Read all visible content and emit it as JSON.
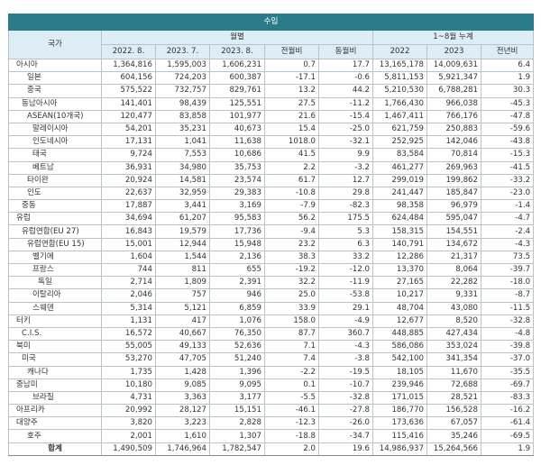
{
  "title": "수입",
  "headers": {
    "country": "국가",
    "monthly": "월별",
    "cumulative": "1~8월 누계",
    "cols": [
      "2022. 8.",
      "2023. 7.",
      "2023. 8.",
      "전월비",
      "동월비",
      "2022",
      "2023",
      "전년비"
    ]
  },
  "colors": {
    "title_bg": "#2b7c8b",
    "header_bg": "#dcedf5"
  },
  "rows": [
    {
      "name": "아시아",
      "level": 0,
      "values": [
        "1,364,816",
        "1,595,003",
        "1,606,231",
        "0.7",
        "17.7",
        "13,165,178",
        "14,009,631",
        "6.4"
      ]
    },
    {
      "name": "일본",
      "level": 2,
      "values": [
        "604,156",
        "724,203",
        "600,387",
        "-17.1",
        "-0.6",
        "5,811,153",
        "5,921,347",
        "1.9"
      ]
    },
    {
      "name": "중국",
      "level": 2,
      "values": [
        "575,522",
        "732,757",
        "829,761",
        "13.2",
        "44.2",
        "5,210,530",
        "6,788,281",
        "30.3"
      ]
    },
    {
      "name": "동남아시아",
      "level": 1,
      "values": [
        "141,401",
        "98,439",
        "125,551",
        "27.5",
        "-11.2",
        "1,766,430",
        "966,038",
        "-45.3"
      ]
    },
    {
      "name": "ASEAN(10개국)",
      "level": 2,
      "values": [
        "120,477",
        "83,858",
        "101,977",
        "21.6",
        "-15.4",
        "1,467,411",
        "766,176",
        "-47.8"
      ]
    },
    {
      "name": "말레이시아",
      "level": 3,
      "values": [
        "54,201",
        "35,231",
        "40,673",
        "15.4",
        "-25.0",
        "621,759",
        "250,883",
        "-59.6"
      ]
    },
    {
      "name": "인도네시아",
      "level": 3,
      "values": [
        "17,131",
        "1,041",
        "11,638",
        "1018.0",
        "-32.1",
        "252,925",
        "142,046",
        "-43.8"
      ]
    },
    {
      "name": "태국",
      "level": 3,
      "values": [
        "9,724",
        "7,553",
        "10,686",
        "41.5",
        "9.9",
        "83,584",
        "70,814",
        "-15.3"
      ]
    },
    {
      "name": "베트남",
      "level": 3,
      "values": [
        "36,931",
        "34,980",
        "35,753",
        "2.2",
        "-3.2",
        "461,277",
        "269,963",
        "-41.5"
      ]
    },
    {
      "name": "타이완",
      "level": 2,
      "values": [
        "20,924",
        "14,581",
        "23,574",
        "61.7",
        "12.7",
        "299,019",
        "199,862",
        "-33.2"
      ]
    },
    {
      "name": "인도",
      "level": 2,
      "values": [
        "22,637",
        "32,959",
        "29,383",
        "-10.8",
        "29.8",
        "241,447",
        "185,847",
        "-23.0"
      ]
    },
    {
      "name": "중동",
      "level": 1,
      "values": [
        "17,887",
        "3,441",
        "3,169",
        "-7.9",
        "-82.3",
        "98,358",
        "96,979",
        "-1.4"
      ]
    },
    {
      "name": "유럽",
      "level": 0,
      "values": [
        "34,694",
        "61,207",
        "95,583",
        "56.2",
        "175.5",
        "624,484",
        "595,047",
        "-4.7"
      ]
    },
    {
      "name": "유럽연합(EU 27)",
      "level": 1,
      "values": [
        "16,843",
        "19,579",
        "17,736",
        "-9.4",
        "5.3",
        "158,315",
        "154,551",
        "-2.4"
      ]
    },
    {
      "name": "유럽연합(EU 15)",
      "level": 2,
      "values": [
        "15,001",
        "12,944",
        "15,948",
        "23.2",
        "6.3",
        "140,791",
        "134,672",
        "-4.3"
      ]
    },
    {
      "name": "벨기에",
      "level": 3,
      "values": [
        "1,604",
        "1,544",
        "2,136",
        "38.3",
        "33.2",
        "12,286",
        "21,317",
        "73.5"
      ]
    },
    {
      "name": "프랑스",
      "level": 3,
      "values": [
        "744",
        "811",
        "655",
        "-19.2",
        "-12.0",
        "13,370",
        "8,064",
        "-39.7"
      ]
    },
    {
      "name": "독일",
      "level": 4,
      "values": [
        "2,714",
        "1,809",
        "2,391",
        "32.2",
        "-11.9",
        "27,165",
        "22,282",
        "-18.0"
      ]
    },
    {
      "name": "이탈리아",
      "level": 3,
      "values": [
        "2,046",
        "757",
        "946",
        "25.0",
        "-53.8",
        "10,217",
        "9,331",
        "-8.7"
      ]
    },
    {
      "name": "스웨덴",
      "level": 3,
      "values": [
        "5,314",
        "5,121",
        "6,859",
        "33.9",
        "29.1",
        "48,704",
        "43,080",
        "-11.5"
      ]
    },
    {
      "name": "터키",
      "level": 0,
      "values": [
        "1,131",
        "417",
        "1,076",
        "158.0",
        "-4.9",
        "12,677",
        "8,520",
        "-32.8"
      ]
    },
    {
      "name": "C.I.S.",
      "level": 1,
      "values": [
        "16,572",
        "40,667",
        "76,350",
        "87.7",
        "360.7",
        "448,885",
        "427,434",
        "-4.8"
      ]
    },
    {
      "name": "북미",
      "level": 0,
      "values": [
        "55,005",
        "49,133",
        "52,636",
        "7.1",
        "-4.3",
        "586,086",
        "353,024",
        "-39.8"
      ]
    },
    {
      "name": "미국",
      "level": 1,
      "values": [
        "53,270",
        "47,705",
        "51,240",
        "7.4",
        "-3.8",
        "542,100",
        "341,354",
        "-37.0"
      ]
    },
    {
      "name": "캐나다",
      "level": 2,
      "values": [
        "1,735",
        "1,428",
        "1,396",
        "-2.2",
        "-19.5",
        "18,105",
        "11,670",
        "-35.5"
      ]
    },
    {
      "name": "중남미",
      "level": 0,
      "values": [
        "10,180",
        "9,085",
        "9,095",
        "0.1",
        "-10.7",
        "239,946",
        "72,688",
        "-69.7"
      ]
    },
    {
      "name": "브라질",
      "level": 3,
      "values": [
        "4,731",
        "3,363",
        "3,177",
        "-5.5",
        "-32.8",
        "171,015",
        "28,521",
        "-83.3"
      ]
    },
    {
      "name": "아프리카",
      "level": 0,
      "values": [
        "20,992",
        "28,127",
        "15,151",
        "-46.1",
        "-27.8",
        "186,770",
        "156,528",
        "-16.2"
      ]
    },
    {
      "name": "대양주",
      "level": 0,
      "values": [
        "3,820",
        "3,223",
        "2,828",
        "-12.3",
        "-26.0",
        "173,636",
        "67,057",
        "-61.4"
      ]
    },
    {
      "name": "호주",
      "level": 2,
      "values": [
        "2,001",
        "1,610",
        "1,307",
        "-18.8",
        "-34.7",
        "115,416",
        "35,246",
        "-69.5"
      ]
    }
  ],
  "total": {
    "name": "합계",
    "values": [
      "1,490,509",
      "1,746,964",
      "1,782,547",
      "2.0",
      "19.6",
      "14,986,937",
      "15,264,566",
      "1.9"
    ]
  }
}
